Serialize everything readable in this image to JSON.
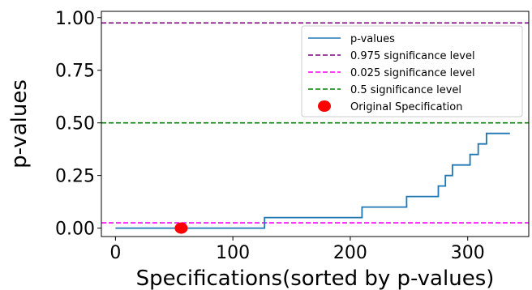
{
  "chart_data": {
    "type": "line",
    "xlabel": "Specifications(sorted by p-values)",
    "ylabel": "p-values",
    "xlim": [
      -12,
      352
    ],
    "ylim": [
      -0.04,
      1.03
    ],
    "xticks": [
      0,
      100,
      200,
      300
    ],
    "xtick_labels": [
      "0",
      "100",
      "200",
      "300"
    ],
    "yticks": [
      0,
      0.25,
      0.5,
      0.75,
      1.0
    ],
    "ytick_labels": [
      "0.00",
      "0.25",
      "0.50",
      "0.75",
      "1.00"
    ],
    "grid": false,
    "legend_position": "top-right",
    "series": [
      {
        "name": "p-values",
        "style": "step-line",
        "color": "#1f77b4",
        "points": [
          [
            0,
            0.0
          ],
          [
            127,
            0.0
          ],
          [
            127,
            0.05
          ],
          [
            210,
            0.05
          ],
          [
            210,
            0.1
          ],
          [
            248,
            0.1
          ],
          [
            248,
            0.15
          ],
          [
            275,
            0.15
          ],
          [
            275,
            0.2
          ],
          [
            281,
            0.2
          ],
          [
            281,
            0.25
          ],
          [
            287,
            0.25
          ],
          [
            287,
            0.3
          ],
          [
            302,
            0.3
          ],
          [
            302,
            0.35
          ],
          [
            309,
            0.35
          ],
          [
            309,
            0.4
          ],
          [
            316,
            0.4
          ],
          [
            316,
            0.45
          ],
          [
            336,
            0.45
          ]
        ]
      }
    ],
    "reference_lines": [
      {
        "name": "0.975 significance level",
        "y": 0.975,
        "color": "#800080",
        "style": "dashed"
      },
      {
        "name": "0.025 significance level",
        "y": 0.025,
        "color": "#ff00ff",
        "style": "dashed"
      },
      {
        "name": "0.5 significance level",
        "y": 0.5,
        "color": "#008000",
        "style": "dashed"
      }
    ],
    "highlight_point": {
      "name": "Original Specification",
      "x": 56,
      "y": 0.0,
      "color": "#ff0000"
    }
  }
}
